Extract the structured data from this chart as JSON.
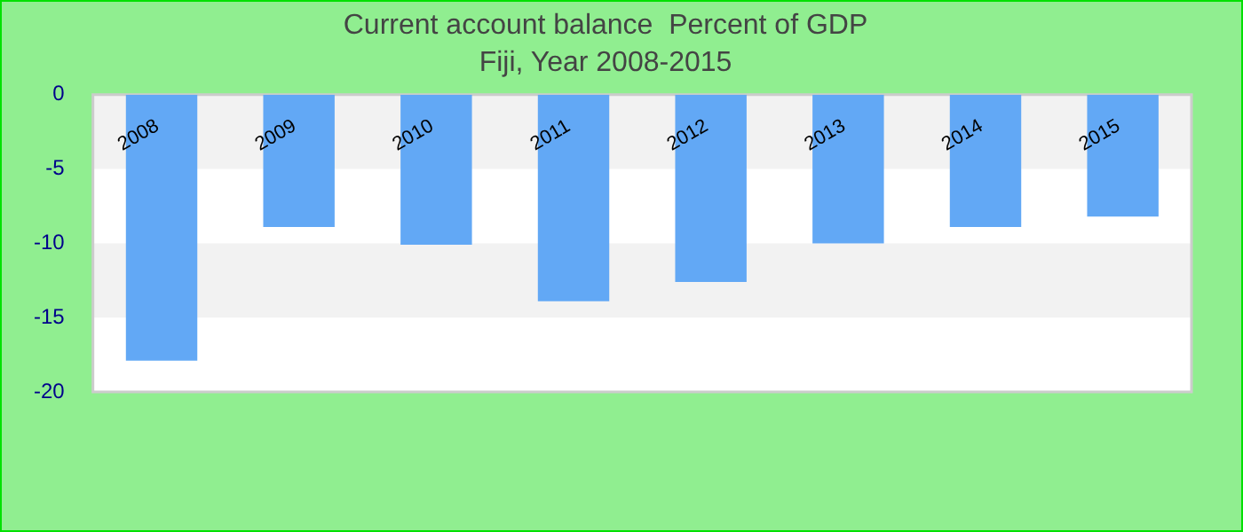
{
  "chart_data": {
    "type": "bar",
    "title": "Current account balance  Percent of GDP",
    "subtitle": "Fiji, Year 2008-2015",
    "categories": [
      "2008",
      "2009",
      "2010",
      "2011",
      "2012",
      "2013",
      "2014",
      "2015"
    ],
    "values": [
      -17.9,
      -8.9,
      -10.1,
      -13.9,
      -12.6,
      -10.0,
      -8.9,
      -8.2
    ],
    "color": "#62a8f5",
    "ylim": [
      -20,
      0
    ],
    "yticks": [
      -20,
      -15,
      -10,
      -5,
      0
    ],
    "legend": false,
    "bands": [
      {
        "axis": "y",
        "from": -5,
        "to": 0,
        "color": "#f2f2f2"
      },
      {
        "axis": "y",
        "from": -15,
        "to": -10,
        "color": "#f2f2f2"
      }
    ]
  }
}
